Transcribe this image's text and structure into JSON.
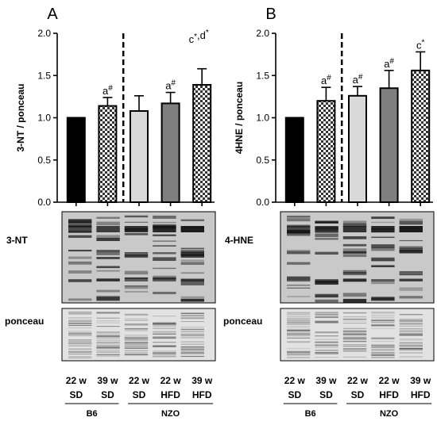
{
  "chart_data": [
    {
      "type": "bar",
      "panel_letter": "A",
      "ylabel": "3-NT / ponceau",
      "ylim": [
        0,
        2.0
      ],
      "yticks": [
        "0.0",
        "0.5",
        "1.0",
        "1.5",
        "2.0"
      ],
      "categories": [
        "22 w SD",
        "39 w SD",
        "22 w SD",
        "22 w HFD",
        "39 w HFD"
      ],
      "values": [
        1.0,
        1.14,
        1.08,
        1.17,
        1.39
      ],
      "errors": [
        0.0,
        0.1,
        0.18,
        0.13,
        0.19
      ],
      "bar_labels": [
        "",
        "a#",
        "",
        "a#",
        "c*,d*"
      ],
      "bar_label_mode": [
        "",
        "bar",
        "",
        "bar",
        "top"
      ],
      "separator_after_index": 1,
      "blot_label": "3-NT",
      "ponceau_label": "ponceau"
    },
    {
      "type": "bar",
      "panel_letter": "B",
      "ylabel": "4HNE / ponceau",
      "ylim": [
        0,
        2.0
      ],
      "yticks": [
        "0.0",
        "0.5",
        "1.0",
        "1.5",
        "2.0"
      ],
      "categories": [
        "22 w SD",
        "39 w SD",
        "22 w SD",
        "22 w HFD",
        "39 w HFD"
      ],
      "values": [
        1.0,
        1.2,
        1.26,
        1.35,
        1.56
      ],
      "errors": [
        0.0,
        0.16,
        0.11,
        0.21,
        0.22
      ],
      "bar_labels": [
        "",
        "a#",
        "a#",
        "a#",
        "c*"
      ],
      "bar_label_mode": [
        "",
        "bar",
        "bar",
        "bar",
        "bar"
      ],
      "separator_after_index": 1,
      "blot_label": "4-HNE",
      "ponceau_label": "ponceau"
    }
  ],
  "legend_rows": {
    "weeks": [
      "22 w",
      "39 w",
      "22 w",
      "22 w",
      "39 w"
    ],
    "diets": [
      "SD",
      "SD",
      "SD",
      "HFD",
      "HFD"
    ],
    "groups": [
      "B6",
      "NZO"
    ]
  },
  "bar_styles": {
    "fills": [
      "#000000",
      "checker",
      "#d9d9d9",
      "#7f7f7f",
      "checker"
    ],
    "checker_dark": "#333333",
    "checker_light": "#ffffff",
    "error_color": "#000000",
    "separator_color": "#000000"
  }
}
